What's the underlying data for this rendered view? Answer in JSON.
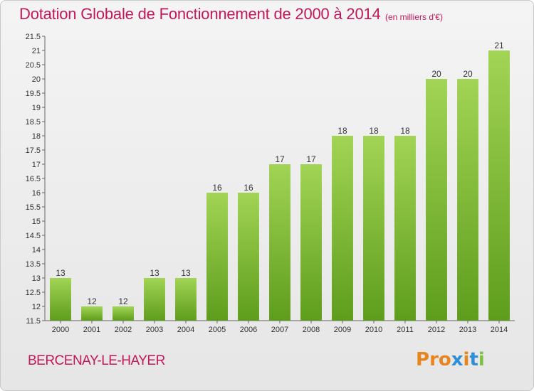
{
  "header": {
    "title": "Dotation Globale de Fonctionnement de 2000 à 2014",
    "unit": "(en milliers d'€)"
  },
  "footer": {
    "commune": "BERCENAY-LE-HAYER",
    "logo": "Proxiti"
  },
  "colors": {
    "title": "#c2185b",
    "bar_top": "#a2d455",
    "bar_bottom": "#5e9d1c",
    "logo_letters": [
      "#e8851f",
      "#e8851f",
      "#e8851f",
      "#2f8fd6",
      "#e8851f",
      "#2f8fd6",
      "#7cc142"
    ]
  },
  "chart_data": {
    "type": "bar",
    "title": "Dotation Globale de Fonctionnement de 2000 à 2014",
    "subtitle": "(en milliers d'€)",
    "xlabel": "",
    "ylabel": "",
    "categories": [
      "2000",
      "2001",
      "2002",
      "2003",
      "2004",
      "2005",
      "2006",
      "2007",
      "2008",
      "2009",
      "2010",
      "2011",
      "2012",
      "2013",
      "2014"
    ],
    "values": [
      13,
      12,
      12,
      13,
      13,
      16,
      16,
      17,
      17,
      18,
      18,
      18,
      20,
      20,
      21
    ],
    "ylim": [
      11.5,
      21.5
    ],
    "yticks": [
      "11.5",
      "12",
      "12.5",
      "13",
      "13.5",
      "14",
      "14.5",
      "15",
      "15.5",
      "16",
      "16.5",
      "17",
      "17.5",
      "18",
      "18.5",
      "19",
      "19.5",
      "20",
      "20.5",
      "21",
      "21.5"
    ],
    "grid": false,
    "legend": "none"
  }
}
